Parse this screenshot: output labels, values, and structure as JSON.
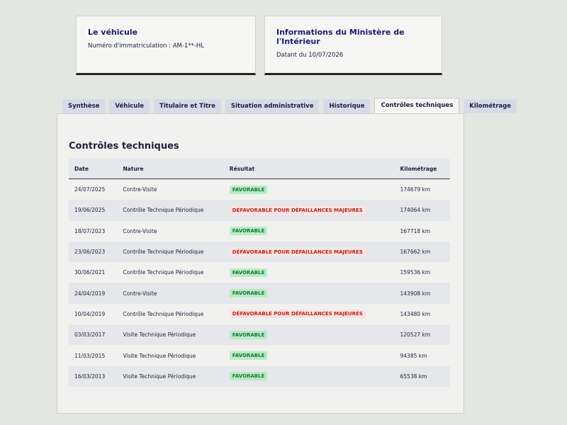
{
  "cards": [
    {
      "title": "Le véhicule",
      "text": "Numéro d'immatriculation : AM-1**-HL"
    },
    {
      "title": "Informations du Ministère de l'Intérieur",
      "text": "Datant du 10/07/2026"
    }
  ],
  "tabs": {
    "items": [
      "Synthèse",
      "Véhicule",
      "Titulaire et Titre",
      "Situation administrative",
      "Historique",
      "Contrôles techniques",
      "Kilométrage"
    ],
    "active": 5
  },
  "table": {
    "title": "Contrôles techniques",
    "headers": [
      "Date",
      "Nature",
      "Résultat",
      "Kilométrage"
    ],
    "rows": [
      [
        "24/07/2025",
        "Contre-Visite",
        "FAVORABLE",
        "174679 km"
      ],
      [
        "19/06/2025",
        "Contrôle Technique Périodique",
        "DÉFAVORABLE POUR DÉFAILLANCES MAJEURES",
        "174064 km"
      ],
      [
        "18/07/2023",
        "Contre-Visite",
        "FAVORABLE",
        "167718 km"
      ],
      [
        "23/06/2023",
        "Contrôle Technique Périodique",
        "DÉFAVORABLE POUR DÉFAILLANCES MAJEURES",
        "167662 km"
      ],
      [
        "30/06/2021",
        "Contrôle Technique Périodique",
        "FAVORABLE",
        "159536 km"
      ],
      [
        "24/04/2019",
        "Contre-Visite",
        "FAVORABLE",
        "143908 km"
      ],
      [
        "10/04/2019",
        "Contrôle Technique Périodique",
        "DÉFAVORABLE POUR DÉFAILLANCES MAJEURES",
        "143480 km"
      ],
      [
        "03/03/2017",
        "Visite Technique Périodique",
        "FAVORABLE",
        "120527 km"
      ],
      [
        "11/03/2015",
        "Visite Technique Périodique",
        "FAVORABLE",
        "94385 km"
      ],
      [
        "16/03/2013",
        "Visite Technique Périodique",
        "FAVORABLE",
        "65538 km"
      ]
    ]
  }
}
